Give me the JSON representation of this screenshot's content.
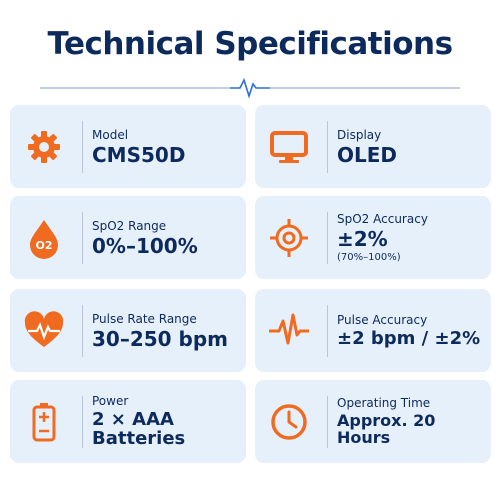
{
  "header": {
    "title": "Technical Specifications"
  },
  "specs": [
    {
      "label": "Model",
      "value": "CMS50D"
    },
    {
      "label": "Display",
      "value": "OLED"
    },
    {
      "label": "SpO2 Range",
      "value": "0%–100%",
      "icon_text": "O2"
    },
    {
      "label": "SpO2 Accuracy",
      "value": "±2%",
      "note": "(70%–100%)"
    },
    {
      "label": "Pulse Rate Range",
      "value": "30–250 bpm"
    },
    {
      "label": "Pulse Accuracy",
      "value": "±2 bpm / ±2%"
    },
    {
      "label": "Power",
      "value": "2 × AAA Batteries"
    },
    {
      "label": "Operating Time",
      "value": "Approx. 20 Hours"
    }
  ]
}
